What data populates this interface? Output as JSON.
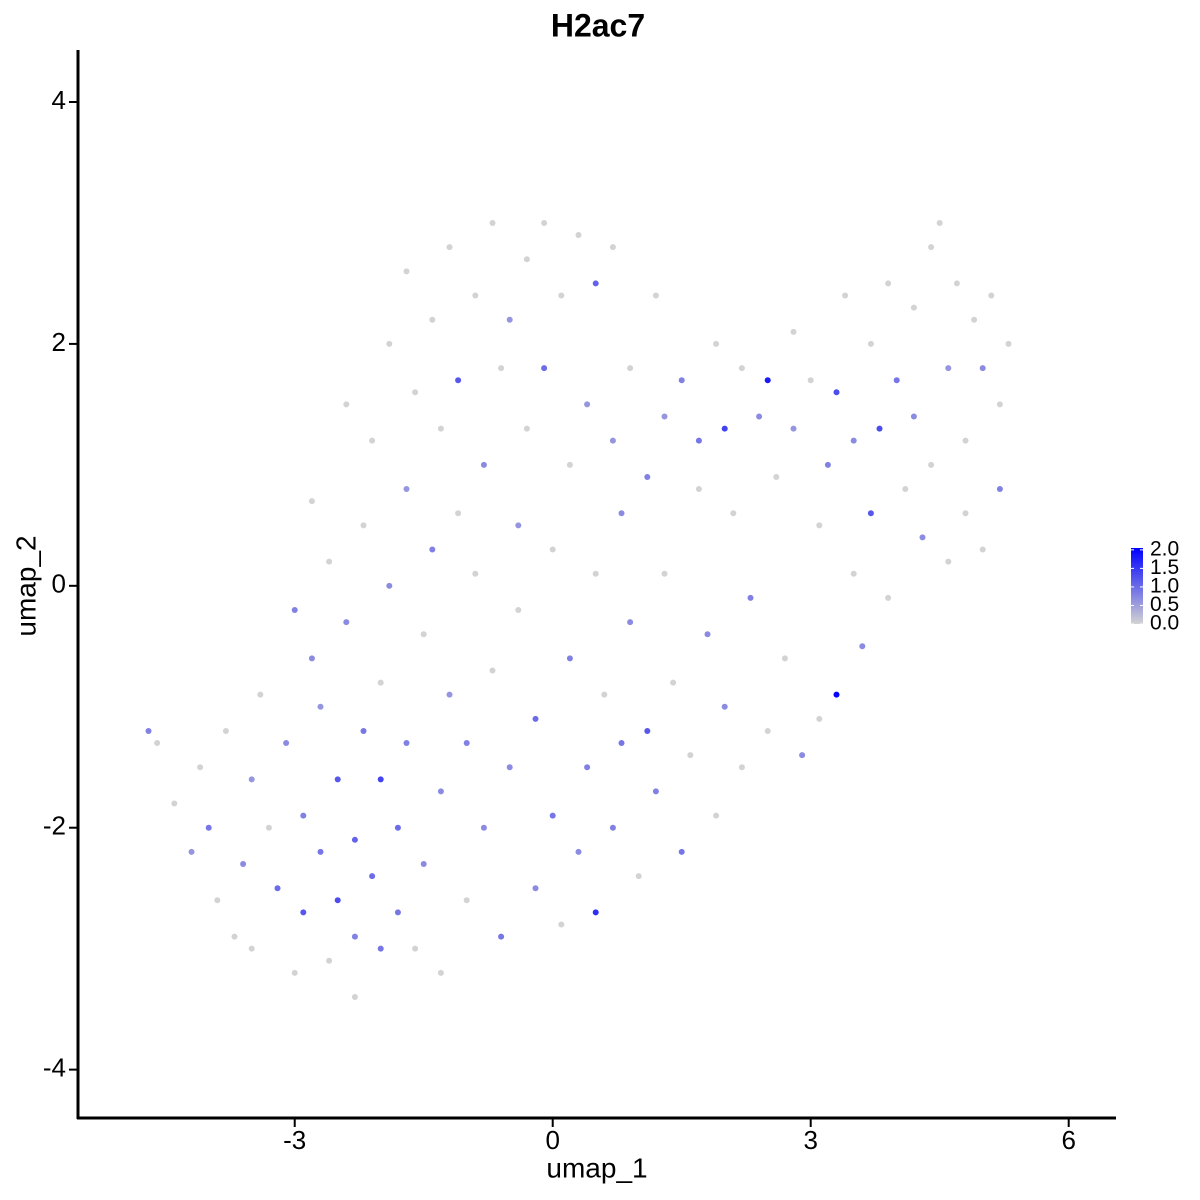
{
  "chart_data": {
    "type": "scatter",
    "title": "H2ac7",
    "x_label": "umap_1",
    "y_label": "umap_2",
    "xlim": [
      -5.52,
      6.55
    ],
    "ylim": [
      -4.4,
      4.43
    ],
    "xticks": [
      -3,
      0,
      3,
      6
    ],
    "yticks": [
      -4,
      -2,
      0,
      2,
      4
    ],
    "color_scale": {
      "low": "#d3d3d3",
      "high": "#0000ff",
      "lim": [
        0,
        2.05
      ],
      "ticks": [
        {
          "value": 0,
          "label": "0.0"
        },
        {
          "value": 0.5,
          "label": "0.5"
        },
        {
          "value": 1,
          "label": "1.0"
        },
        {
          "value": 1.5,
          "label": "1.5"
        },
        {
          "value": 2,
          "label": "2.0"
        }
      ]
    },
    "x": [
      -4.7,
      -4.6,
      -4.4,
      -4.2,
      -4.1,
      -4.0,
      -3.9,
      -3.8,
      -3.7,
      -3.6,
      -3.5,
      -3.5,
      -3.4,
      -3.3,
      -3.2,
      -3.1,
      -3.0,
      -3.0,
      -2.9,
      -2.9,
      -2.8,
      -2.8,
      -2.7,
      -2.7,
      -2.6,
      -2.6,
      -2.5,
      -2.5,
      -2.4,
      -2.4,
      -2.3,
      -2.3,
      -2.3,
      -2.2,
      -2.2,
      -2.1,
      -2.1,
      -2.0,
      -2.0,
      -2.0,
      -1.9,
      -1.9,
      -1.8,
      -1.8,
      -1.7,
      -1.7,
      -1.7,
      -1.6,
      -1.6,
      -1.5,
      -1.5,
      -1.4,
      -1.4,
      -1.3,
      -1.3,
      -1.3,
      -1.2,
      -1.2,
      -1.1,
      -1.1,
      -1.0,
      -1.0,
      -0.9,
      -0.9,
      -0.8,
      -0.8,
      -0.7,
      -0.7,
      -0.6,
      -0.6,
      -0.5,
      -0.5,
      -0.4,
      -0.4,
      -0.3,
      -0.3,
      -0.2,
      -0.2,
      -0.1,
      -0.1,
      0.0,
      0.0,
      0.1,
      0.1,
      0.2,
      0.2,
      0.3,
      0.3,
      0.4,
      0.4,
      0.5,
      0.5,
      0.5,
      0.6,
      0.7,
      0.7,
      0.7,
      0.8,
      0.8,
      0.9,
      0.9,
      1.0,
      1.1,
      1.1,
      1.2,
      1.2,
      1.3,
      1.3,
      1.4,
      1.5,
      1.5,
      1.6,
      1.7,
      1.7,
      1.8,
      1.9,
      1.9,
      2.0,
      2.0,
      2.1,
      2.2,
      2.2,
      2.3,
      2.4,
      2.5,
      2.5,
      2.6,
      2.7,
      2.8,
      2.8,
      2.9,
      3.0,
      3.1,
      3.1,
      3.2,
      3.3,
      3.3,
      3.4,
      3.5,
      3.5,
      3.6,
      3.7,
      3.7,
      3.8,
      3.9,
      3.9,
      4.0,
      4.1,
      4.2,
      4.2,
      4.3,
      4.4,
      4.4,
      4.5,
      4.6,
      4.6,
      4.7,
      4.8,
      4.8,
      4.9,
      5.0,
      5.0,
      5.1,
      5.2,
      5.2,
      5.3
    ],
    "y": [
      -1.2,
      -1.3,
      -1.8,
      -2.2,
      -1.5,
      -2.0,
      -2.6,
      -1.2,
      -2.9,
      -2.3,
      -1.6,
      -3.0,
      -0.9,
      -2.0,
      -2.5,
      -1.3,
      -3.2,
      -0.2,
      -2.7,
      -1.9,
      -0.6,
      0.7,
      -2.2,
      -1.0,
      -3.1,
      0.2,
      -2.6,
      -1.6,
      -0.3,
      1.5,
      -2.9,
      -2.1,
      -3.4,
      -1.2,
      0.5,
      -2.4,
      1.2,
      -1.6,
      -3.0,
      -0.8,
      2.0,
      0.0,
      -2.7,
      -2.0,
      -1.3,
      2.6,
      0.8,
      -3.0,
      1.6,
      -0.4,
      -2.3,
      2.2,
      0.3,
      -1.7,
      -3.2,
      1.3,
      2.8,
      -0.9,
      1.7,
      0.6,
      -2.6,
      -1.3,
      2.4,
      0.1,
      1.0,
      -2.0,
      3.0,
      -0.7,
      1.8,
      -2.9,
      2.2,
      -1.5,
      0.5,
      -0.2,
      2.7,
      1.3,
      -2.5,
      -1.1,
      3.0,
      1.8,
      0.3,
      -1.9,
      -2.8,
      2.4,
      -0.6,
      1.0,
      2.9,
      -2.2,
      1.5,
      -1.5,
      2.5,
      -2.7,
      0.1,
      -0.9,
      1.2,
      2.8,
      -2.0,
      0.6,
      -1.3,
      1.8,
      -0.3,
      -2.4,
      0.9,
      -1.2,
      2.4,
      -1.7,
      1.4,
      0.1,
      -0.8,
      1.7,
      -2.2,
      -1.4,
      0.8,
      1.2,
      -0.4,
      2.0,
      -1.9,
      1.3,
      -1.0,
      0.6,
      1.8,
      -1.5,
      -0.1,
      1.4,
      1.7,
      -1.2,
      0.9,
      -0.6,
      2.1,
      1.3,
      -1.4,
      1.7,
      -1.1,
      0.5,
      1.0,
      -0.9,
      1.6,
      2.4,
      0.1,
      1.2,
      -0.5,
      2.0,
      0.6,
      1.3,
      2.5,
      -0.1,
      1.7,
      0.8,
      1.4,
      2.3,
      0.4,
      2.8,
      1.0,
      3.0,
      1.8,
      0.2,
      2.5,
      1.2,
      0.6,
      2.2,
      1.8,
      0.3,
      2.4,
      0.8,
      1.5,
      2.0
    ],
    "values": [
      0.8,
      0,
      0,
      0.6,
      0,
      0.9,
      0,
      0,
      0,
      0.7,
      0.6,
      0,
      0,
      0,
      1.0,
      0.7,
      0,
      0.8,
      1.2,
      0.8,
      0.7,
      0,
      0.9,
      0.6,
      0,
      0,
      1.3,
      1.2,
      0.7,
      0,
      0.8,
      1.1,
      0,
      0.9,
      0,
      1.0,
      0,
      1.4,
      0.9,
      0,
      0,
      0.7,
      0.9,
      1.0,
      0.8,
      0,
      0.6,
      0,
      0,
      0,
      0.7,
      0,
      0.8,
      0.7,
      0,
      0,
      0,
      0.6,
      1.2,
      0,
      0,
      0.8,
      0,
      0,
      0.7,
      0.7,
      0,
      0,
      0,
      0.9,
      0.6,
      0.7,
      0.6,
      0,
      0,
      0,
      0.7,
      1.0,
      0,
      1.0,
      0,
      0.9,
      0,
      0,
      0.8,
      0,
      0,
      0.7,
      0.6,
      0.8,
      1.1,
      1.6,
      0,
      0,
      0.6,
      0,
      0.8,
      0.7,
      0.9,
      0,
      0.7,
      0,
      0.8,
      1.2,
      0,
      0.8,
      0.6,
      0,
      0,
      0.8,
      0.9,
      0,
      0,
      0.9,
      0.7,
      0,
      0,
      1.4,
      0.7,
      0,
      0,
      0,
      0.8,
      0.7,
      1.8,
      0,
      0,
      0,
      0,
      0.6,
      0.7,
      0,
      0,
      0,
      0.8,
      2.0,
      1.3,
      0,
      0,
      0.7,
      0.7,
      0,
      1.2,
      1.3,
      0,
      0,
      0.9,
      0,
      0.7,
      0,
      0.7,
      0,
      0,
      0,
      0.6,
      0,
      0,
      0,
      0,
      0,
      0.7,
      0,
      0,
      0.8,
      0,
      0
    ]
  }
}
